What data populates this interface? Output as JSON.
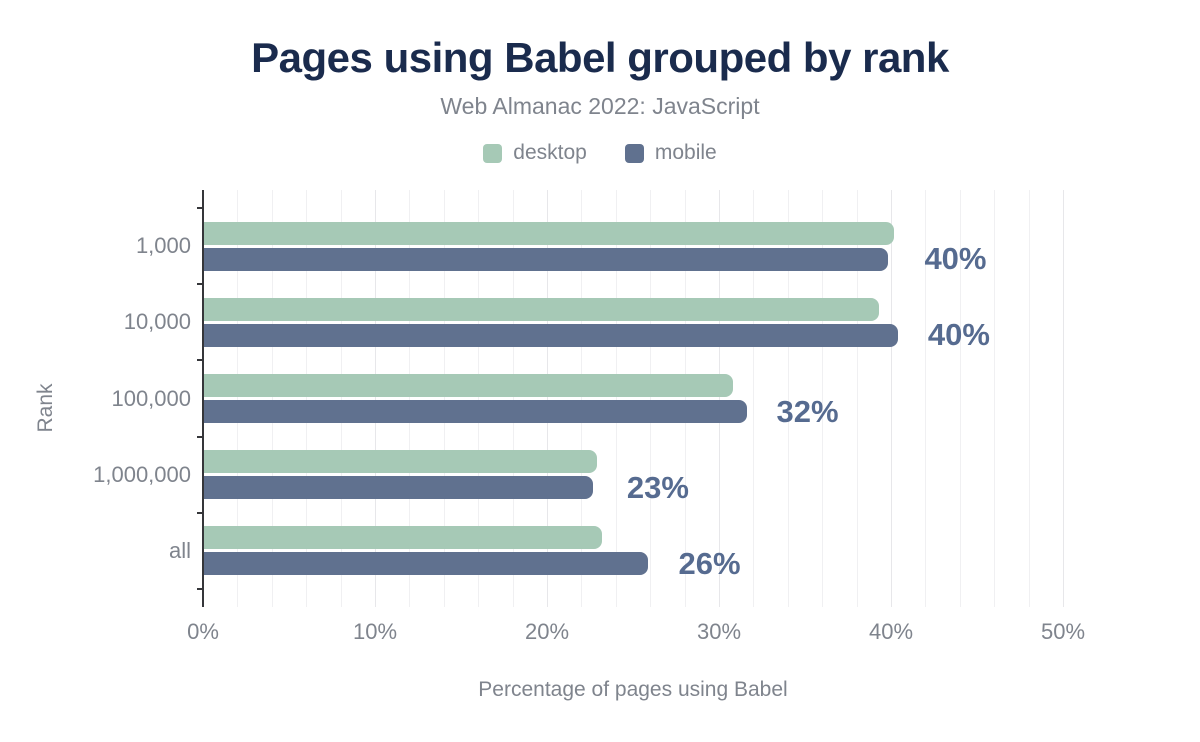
{
  "header": {
    "title": "Pages using Babel grouped by rank",
    "subtitle": "Web Almanac 2022: JavaScript"
  },
  "legend": {
    "items": [
      {
        "label": "desktop",
        "color": "#a6c9b6"
      },
      {
        "label": "mobile",
        "color": "#60718f"
      }
    ]
  },
  "chart_data": {
    "type": "bar",
    "orientation": "horizontal",
    "title": "Pages using Babel grouped by rank",
    "subtitle": "Web Almanac 2022: JavaScript",
    "categories": [
      "1,000",
      "10,000",
      "100,000",
      "1,000,000",
      "all"
    ],
    "series": [
      {
        "name": "desktop",
        "color": "#a6c9b6",
        "values": [
          40.2,
          39.3,
          30.8,
          22.9,
          23.2
        ]
      },
      {
        "name": "mobile",
        "color": "#60718f",
        "values": [
          39.8,
          40.4,
          31.6,
          22.7,
          25.9
        ]
      }
    ],
    "data_labels": {
      "series": "mobile",
      "values": [
        "40%",
        "40%",
        "32%",
        "23%",
        "26%"
      ],
      "color": "#566b90"
    },
    "xlabel": "Percentage of pages using Babel",
    "ylabel": "Rank",
    "x_ticks": [
      "0%",
      "10%",
      "20%",
      "30%",
      "40%",
      "50%"
    ],
    "x_tick_values": [
      0,
      10,
      20,
      30,
      40,
      50
    ],
    "xlim": [
      0,
      52
    ],
    "minor_grid_step": 2,
    "grid": true,
    "legend_position": "top"
  },
  "colors": {
    "background": "#ffffff",
    "title_text": "#1a2b4d",
    "muted_text": "#7f848d",
    "desktop": "#a6c9b6",
    "mobile": "#60718f",
    "data_label": "#566b90",
    "grid_minor": "#f0f0f2",
    "grid_major": "#e7e7ea",
    "axis_line": "#35363a"
  }
}
